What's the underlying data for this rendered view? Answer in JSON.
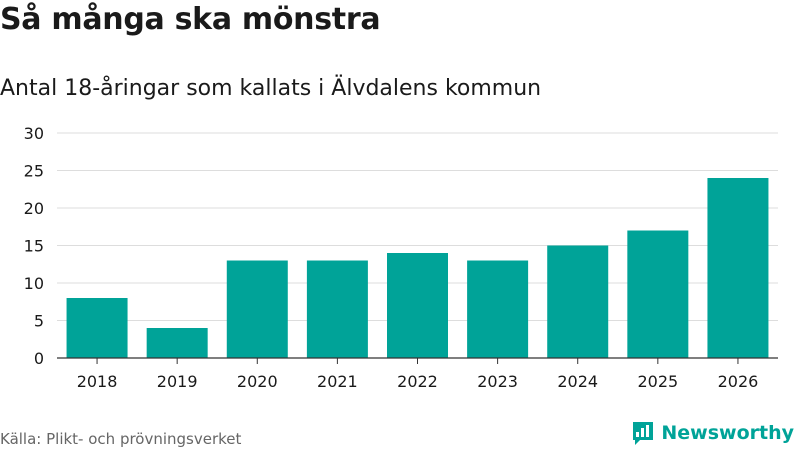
{
  "header": {
    "title": "Så många ska mönstra",
    "subtitle": "Antal 18-åringar som kallats i Älvdalens kommun"
  },
  "footer": {
    "source": "Källa: Plikt- och prövningsverket",
    "brand": "Newsworthy"
  },
  "colors": {
    "bar": "#00a398",
    "grid": "#dddddd",
    "axis": "#333333",
    "tick_text": "#1a1a1a",
    "brand": "#00a398"
  },
  "chart_data": {
    "type": "bar",
    "title": "Så många ska mönstra",
    "subtitle": "Antal 18-åringar som kallats i Älvdalens kommun",
    "categories": [
      "2018",
      "2019",
      "2020",
      "2021",
      "2022",
      "2023",
      "2024",
      "2025",
      "2026"
    ],
    "values": [
      8,
      4,
      13,
      13,
      14,
      13,
      15,
      17,
      24
    ],
    "yticks": [
      0,
      5,
      10,
      15,
      20,
      25,
      30
    ],
    "ylim": [
      0,
      30
    ],
    "xlabel": "",
    "ylabel": "",
    "grid": true,
    "legend": "none"
  }
}
